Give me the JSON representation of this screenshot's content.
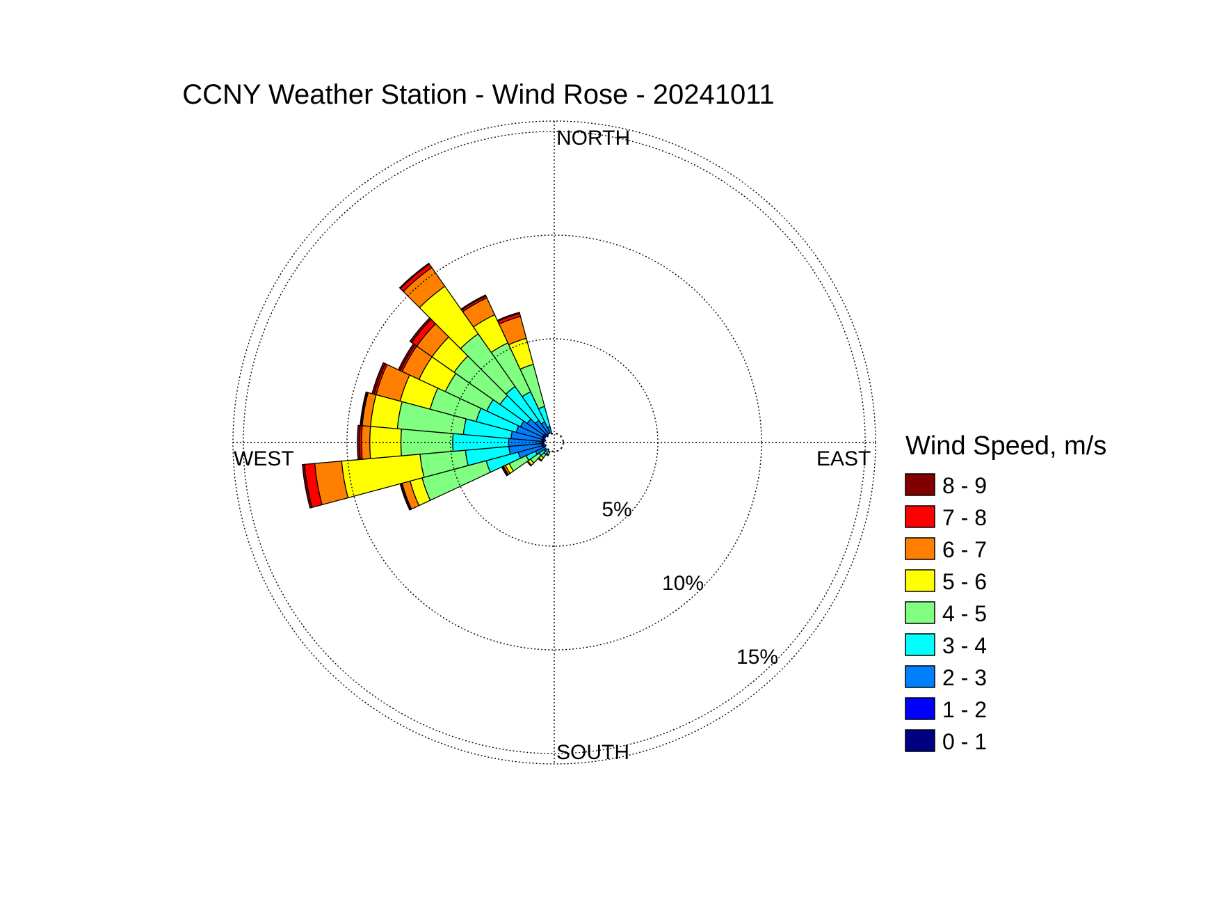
{
  "chart_data": {
    "type": "windrose",
    "title": "CCNY Weather Station - Wind Rose - 20241011",
    "direction_labels": {
      "north": "NORTH",
      "south": "SOUTH",
      "east": "EAST",
      "west": "WEST"
    },
    "radial_ticks": [
      {
        "value": 5,
        "label": "5%"
      },
      {
        "value": 10,
        "label": "10%"
      },
      {
        "value": 15,
        "label": "15%"
      }
    ],
    "radial_max": 15.5,
    "legend": {
      "title": "Wind Speed, m/s",
      "bins": [
        {
          "label": "8 - 9",
          "color": "#800000"
        },
        {
          "label": "7 - 8",
          "color": "#ff0000"
        },
        {
          "label": "6 - 7",
          "color": "#ff8000"
        },
        {
          "label": "5 - 6",
          "color": "#ffff00"
        },
        {
          "label": "4 - 5",
          "color": "#80ff80"
        },
        {
          "label": "3 - 4",
          "color": "#00ffff"
        },
        {
          "label": "2 - 3",
          "color": "#0080ff"
        },
        {
          "label": "1 - 2",
          "color": "#0000ff"
        },
        {
          "label": "0 - 1",
          "color": "#000080"
        }
      ]
    },
    "sector_width_deg": 10,
    "bin_order_inner_to_outer": [
      "0 - 1",
      "1 - 2",
      "2 - 3",
      "3 - 4",
      "4 - 5",
      "5 - 6",
      "6 - 7",
      "7 - 8",
      "8 - 9"
    ],
    "sectors": [
      {
        "direction_deg": 10,
        "cumulative_pct": [
          0.05,
          0.08,
          0.1,
          0.12,
          0.14,
          0.15,
          0.15,
          0.15,
          0.15
        ]
      },
      {
        "direction_deg": 20,
        "cumulative_pct": [
          0.05,
          0.08,
          0.12,
          0.15,
          0.18,
          0.19,
          0.19,
          0.19,
          0.19
        ]
      },
      {
        "direction_deg": 30,
        "cumulative_pct": [
          0.05,
          0.1,
          0.15,
          0.2,
          0.25,
          0.25,
          0.25,
          0.25,
          0.25
        ]
      },
      {
        "direction_deg": 340,
        "cumulative_pct": [
          0.15,
          0.4,
          0.8,
          1.8,
          3.9,
          5.2,
          6.3,
          6.45,
          6.5
        ]
      },
      {
        "direction_deg": 330,
        "cumulative_pct": [
          0.2,
          0.5,
          1.1,
          2.7,
          5.3,
          6.8,
          7.7,
          7.8,
          7.85
        ]
      },
      {
        "direction_deg": 320,
        "cumulative_pct": [
          0.2,
          0.5,
          1.3,
          3.3,
          6.4,
          9.2,
          10.3,
          10.5,
          10.55
        ]
      },
      {
        "direction_deg": 310,
        "cumulative_pct": [
          0.2,
          0.6,
          1.6,
          3.2,
          5.9,
          7.2,
          8.1,
          8.4,
          8.5
        ]
      },
      {
        "direction_deg": 300,
        "cumulative_pct": [
          0.2,
          0.6,
          1.8,
          3.6,
          5.8,
          7.2,
          8.1,
          8.2,
          8.3
        ]
      },
      {
        "direction_deg": 290,
        "cumulative_pct": [
          0.2,
          0.6,
          1.9,
          3.9,
          6.2,
          7.7,
          8.9,
          9.0,
          9.1
        ]
      },
      {
        "direction_deg": 280,
        "cumulative_pct": [
          0.2,
          0.6,
          2.1,
          4.4,
          7.6,
          8.9,
          9.3,
          9.35,
          9.4
        ]
      },
      {
        "direction_deg": 270,
        "cumulative_pct": [
          0.2,
          0.6,
          2.2,
          4.9,
          7.4,
          8.9,
          9.3,
          9.4,
          9.5
        ]
      },
      {
        "direction_deg": 260,
        "cumulative_pct": [
          0.2,
          0.6,
          2.2,
          4.3,
          6.5,
          10.3,
          11.6,
          12.1,
          12.2
        ]
      },
      {
        "direction_deg": 250,
        "cumulative_pct": [
          0.2,
          0.6,
          1.8,
          3.4,
          6.6,
          7.2,
          7.6,
          7.65,
          7.7
        ]
      },
      {
        "direction_deg": 240,
        "cumulative_pct": [
          0.15,
          0.4,
          1.0,
          1.5,
          2.4,
          2.6,
          2.7,
          2.75,
          2.8
        ]
      },
      {
        "direction_deg": 230,
        "cumulative_pct": [
          0.1,
          0.3,
          0.6,
          0.9,
          1.4,
          1.55,
          1.6,
          1.6,
          1.6
        ]
      },
      {
        "direction_deg": 220,
        "cumulative_pct": [
          0.1,
          0.2,
          0.4,
          0.7,
          0.9,
          1.05,
          1.1,
          1.1,
          1.1
        ]
      },
      {
        "direction_deg": 210,
        "cumulative_pct": [
          0.05,
          0.15,
          0.3,
          0.5,
          0.65,
          0.7,
          0.7,
          0.7,
          0.7
        ]
      },
      {
        "direction_deg": 200,
        "cumulative_pct": [
          0.05,
          0.1,
          0.2,
          0.3,
          0.4,
          0.4,
          0.4,
          0.4,
          0.4
        ]
      }
    ],
    "grid": true,
    "legend_position": "right"
  }
}
